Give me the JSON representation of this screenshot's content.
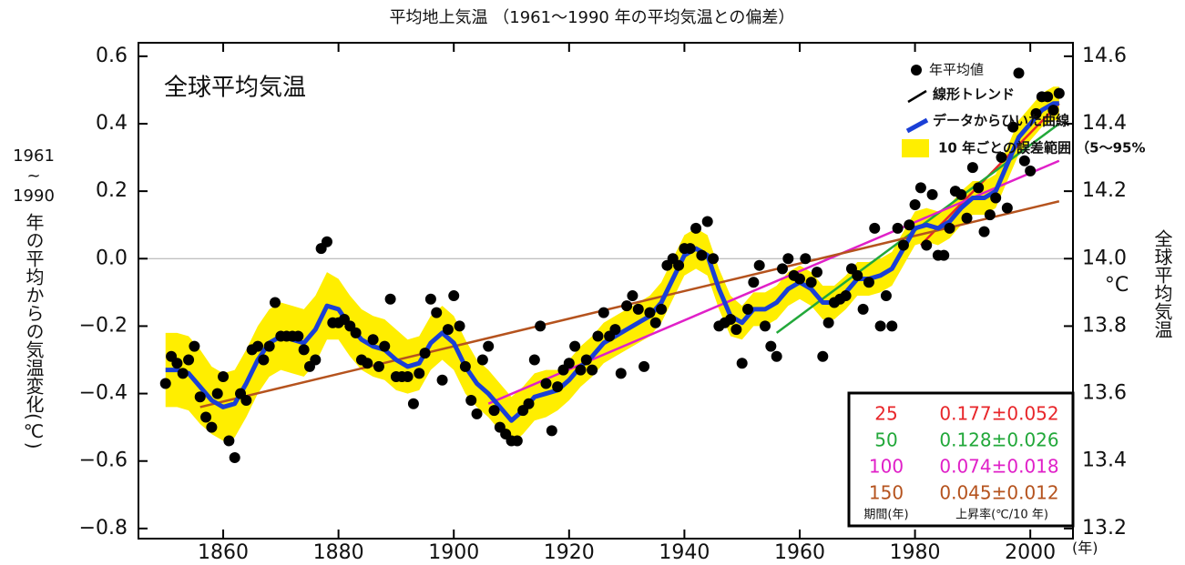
{
  "chart_data": {
    "type": "scatter",
    "title": "平均地上気温 （1961〜1990 年の平均気温との偏差）",
    "inset_title": "全球平均気温",
    "ylabel_parts": [
      "1961",
      "~",
      "1990",
      "年の平均からの気温変化(℃)"
    ],
    "y2label": "全球平均気温",
    "y2unit": "°C",
    "xunit": "(年)",
    "xlim": [
      1845.3,
      2007.4
    ],
    "xticks": [
      1860,
      1880,
      1900,
      1920,
      1940,
      1960,
      1980,
      2000
    ],
    "ylim": [
      -0.83,
      0.64
    ],
    "yticks": [
      0.6,
      0.4,
      0.2,
      {
        "value": 0,
        "label": "0.0"
      },
      {
        "value": -0.2,
        "label": "−0.2"
      },
      {
        "value": -0.4,
        "label": "−0.4"
      },
      {
        "value": -0.6,
        "label": "−0.6"
      },
      {
        "value": -0.8,
        "label": "−0.8"
      }
    ],
    "y2lim": [
      13.17,
      14.64
    ],
    "y2ticks": [
      14.6,
      14.4,
      14.2,
      {
        "value": 14,
        "label": "14.0"
      },
      13.8,
      13.6,
      13.4,
      13.2
    ],
    "series": [
      {
        "name": "年平均値",
        "color": "#000000",
        "x": [
          1850,
          1851,
          1852,
          1853,
          1854,
          1855,
          1856,
          1857,
          1858,
          1859,
          1860,
          1861,
          1862,
          1863,
          1864,
          1865,
          1866,
          1867,
          1868,
          1869,
          1870,
          1871,
          1872,
          1873,
          1874,
          1875,
          1876,
          1877,
          1878,
          1879,
          1880,
          1881,
          1882,
          1883,
          1884,
          1885,
          1886,
          1887,
          1888,
          1889,
          1890,
          1891,
          1892,
          1893,
          1894,
          1895,
          1896,
          1897,
          1898,
          1899,
          1900,
          1901,
          1902,
          1903,
          1904,
          1905,
          1906,
          1907,
          1908,
          1909,
          1910,
          1911,
          1912,
          1913,
          1914,
          1915,
          1916,
          1917,
          1918,
          1919,
          1920,
          1921,
          1922,
          1923,
          1924,
          1925,
          1926,
          1927,
          1928,
          1929,
          1930,
          1931,
          1932,
          1933,
          1934,
          1935,
          1936,
          1937,
          1938,
          1939,
          1940,
          1941,
          1942,
          1943,
          1944,
          1945,
          1946,
          1947,
          1948,
          1949,
          1950,
          1951,
          1952,
          1953,
          1954,
          1955,
          1956,
          1957,
          1958,
          1959,
          1960,
          1961,
          1962,
          1963,
          1964,
          1965,
          1966,
          1967,
          1968,
          1969,
          1970,
          1971,
          1972,
          1973,
          1974,
          1975,
          1976,
          1977,
          1978,
          1979,
          1980,
          1981,
          1982,
          1983,
          1984,
          1985,
          1986,
          1987,
          1988,
          1989,
          1990,
          1991,
          1992,
          1993,
          1994,
          1995,
          1996,
          1997,
          1998,
          1999,
          2000,
          2001,
          2002,
          2003,
          2004,
          2005
        ],
        "values": [
          -0.37,
          -0.29,
          -0.31,
          -0.34,
          -0.3,
          -0.26,
          -0.41,
          -0.47,
          -0.5,
          -0.4,
          -0.35,
          -0.54,
          -0.59,
          -0.4,
          -0.42,
          -0.27,
          -0.26,
          -0.3,
          -0.26,
          -0.13,
          -0.23,
          -0.23,
          -0.23,
          -0.23,
          -0.27,
          -0.32,
          -0.3,
          0.03,
          0.05,
          -0.19,
          -0.19,
          -0.18,
          -0.2,
          -0.22,
          -0.3,
          -0.31,
          -0.24,
          -0.32,
          -0.26,
          -0.12,
          -0.35,
          -0.35,
          -0.35,
          -0.43,
          -0.34,
          -0.28,
          -0.12,
          -0.16,
          -0.36,
          -0.21,
          -0.11,
          -0.2,
          -0.32,
          -0.42,
          -0.46,
          -0.3,
          -0.26,
          -0.45,
          -0.5,
          -0.52,
          -0.54,
          -0.54,
          -0.45,
          -0.43,
          -0.3,
          -0.2,
          -0.37,
          -0.51,
          -0.38,
          -0.33,
          -0.31,
          -0.26,
          -0.33,
          -0.3,
          -0.33,
          -0.23,
          -0.16,
          -0.23,
          -0.21,
          -0.34,
          -0.14,
          -0.11,
          -0.15,
          -0.32,
          -0.16,
          -0.19,
          -0.15,
          -0.02,
          0.0,
          -0.02,
          0.03,
          0.03,
          0.09,
          0.01,
          0.11,
          0.0,
          -0.2,
          -0.19,
          -0.18,
          -0.21,
          -0.31,
          -0.15,
          -0.07,
          -0.02,
          -0.2,
          -0.26,
          -0.29,
          -0.03,
          0.0,
          -0.05,
          -0.06,
          0.0,
          -0.07,
          -0.04,
          -0.29,
          -0.19,
          -0.13,
          -0.12,
          -0.11,
          -0.03,
          -0.05,
          -0.15,
          -0.07,
          0.09,
          -0.2,
          -0.11,
          -0.2,
          0.09,
          0.04,
          0.1,
          0.16,
          0.21,
          0.04,
          0.19,
          0.01,
          0.01,
          0.09,
          0.2,
          0.19,
          0.12,
          0.27,
          0.21,
          0.08,
          0.13,
          0.18,
          0.3,
          0.15,
          0.39,
          0.55,
          0.29,
          0.26,
          0.43,
          0.48,
          0.48,
          0.44,
          0.49
        ]
      }
    ],
    "smooth": {
      "name": "データからひいた曲線",
      "color": "#1a3fd6",
      "band_name": "10 年ごとの誤差範囲 （5〜95%",
      "band_color": "#ffee00",
      "x": [
        1850,
        1852,
        1854,
        1856,
        1858,
        1860,
        1862,
        1864,
        1866,
        1868,
        1870,
        1872,
        1874,
        1876,
        1878,
        1880,
        1882,
        1884,
        1886,
        1888,
        1890,
        1892,
        1894,
        1896,
        1898,
        1900,
        1902,
        1904,
        1906,
        1908,
        1910,
        1912,
        1914,
        1916,
        1918,
        1920,
        1922,
        1924,
        1926,
        1928,
        1930,
        1932,
        1934,
        1936,
        1938,
        1940,
        1942,
        1944,
        1946,
        1948,
        1950,
        1952,
        1954,
        1956,
        1958,
        1960,
        1962,
        1964,
        1966,
        1968,
        1970,
        1972,
        1974,
        1976,
        1978,
        1980,
        1982,
        1984,
        1986,
        1988,
        1990,
        1992,
        1994,
        1996,
        1998,
        2000,
        2002,
        2004,
        2005
      ],
      "values": [
        -0.33,
        -0.33,
        -0.34,
        -0.38,
        -0.42,
        -0.44,
        -0.43,
        -0.37,
        -0.3,
        -0.25,
        -0.23,
        -0.24,
        -0.25,
        -0.21,
        -0.14,
        -0.15,
        -0.2,
        -0.24,
        -0.26,
        -0.27,
        -0.3,
        -0.32,
        -0.31,
        -0.25,
        -0.22,
        -0.25,
        -0.32,
        -0.37,
        -0.4,
        -0.44,
        -0.48,
        -0.45,
        -0.41,
        -0.4,
        -0.39,
        -0.36,
        -0.32,
        -0.29,
        -0.25,
        -0.23,
        -0.21,
        -0.19,
        -0.17,
        -0.13,
        -0.06,
        0.01,
        0.03,
        0.01,
        -0.09,
        -0.17,
        -0.19,
        -0.15,
        -0.15,
        -0.13,
        -0.09,
        -0.07,
        -0.09,
        -0.13,
        -0.13,
        -0.1,
        -0.06,
        -0.06,
        -0.05,
        -0.03,
        0.03,
        0.09,
        0.1,
        0.09,
        0.11,
        0.15,
        0.18,
        0.18,
        0.2,
        0.28,
        0.36,
        0.4,
        0.44,
        0.46,
        0.46
      ],
      "errors": [
        0.11,
        0.11,
        0.11,
        0.11,
        0.1,
        0.1,
        0.1,
        0.1,
        0.1,
        0.1,
        0.1,
        0.1,
        0.1,
        0.1,
        0.1,
        0.09,
        0.09,
        0.09,
        0.09,
        0.09,
        0.09,
        0.08,
        0.08,
        0.08,
        0.08,
        0.08,
        0.08,
        0.07,
        0.07,
        0.07,
        0.07,
        0.07,
        0.07,
        0.07,
        0.06,
        0.06,
        0.06,
        0.06,
        0.06,
        0.06,
        0.06,
        0.06,
        0.06,
        0.06,
        0.06,
        0.06,
        0.06,
        0.06,
        0.06,
        0.06,
        0.05,
        0.05,
        0.05,
        0.05,
        0.05,
        0.05,
        0.05,
        0.05,
        0.05,
        0.05,
        0.05,
        0.05,
        0.05,
        0.05,
        0.05,
        0.05,
        0.05,
        0.05,
        0.05,
        0.05,
        0.05,
        0.05,
        0.05,
        0.05,
        0.05,
        0.05,
        0.05,
        0.05,
        0.05
      ]
    },
    "trend_name": "線形トレンド",
    "trends": [
      {
        "period": 25,
        "rate": "0.177±0.052",
        "color": "#e8262a",
        "x": [
          1981,
          2005
        ],
        "values": [
          0.04,
          0.46
        ]
      },
      {
        "period": 50,
        "rate": "0.128±0.026",
        "color": "#22a83a",
        "x": [
          1956,
          2005
        ],
        "values": [
          -0.22,
          0.4
        ]
      },
      {
        "period": 100,
        "rate": "0.074±0.018",
        "color": "#e020c8",
        "x": [
          1906,
          2005
        ],
        "values": [
          -0.43,
          0.29
        ]
      },
      {
        "period": 150,
        "rate": "0.045±0.012",
        "color": "#b5531e",
        "x": [
          1856,
          2005
        ],
        "values": [
          -0.44,
          0.17
        ]
      }
    ],
    "table_header": [
      "期間(年)",
      "上昇率(℃/10 年)"
    ]
  }
}
